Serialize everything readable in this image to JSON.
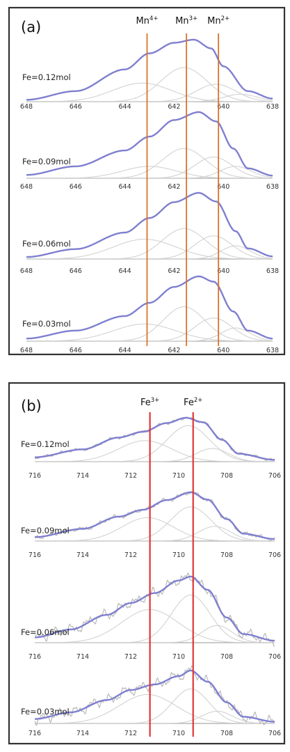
{
  "colors": {
    "envelope": "#7f7fd0",
    "component": "#d2d2d2",
    "raw": "#b4b4b4",
    "marker_a": "#d9742b",
    "marker_b": "#e03535"
  },
  "chart_data": [
    {
      "type": "line",
      "panel_label": "(a)",
      "x_direction": "decreasing",
      "xlim": [
        648,
        638
      ],
      "xticks": [
        "648",
        "646",
        "644",
        "642",
        "640",
        "638"
      ],
      "markers": [
        {
          "base": "Mn",
          "charge": "4+",
          "x": 643.1
        },
        {
          "base": "Mn",
          "charge": "3+",
          "x": 641.5
        },
        {
          "base": "Mn",
          "charge": "2+",
          "x": 640.2
        }
      ],
      "spectra": [
        {
          "label": "Fe=0.12mol",
          "peak_position": 641.1,
          "envelope": [
            [
              648,
              0.03
            ],
            [
              646,
              0.17
            ],
            [
              644,
              0.52
            ],
            [
              643,
              0.78
            ],
            [
              642,
              0.95
            ],
            [
              641.2,
              1.0
            ],
            [
              640.5,
              0.86
            ],
            [
              640,
              0.57
            ],
            [
              639,
              0.17
            ],
            [
              638,
              0.05
            ]
          ],
          "components": [
            {
              "center": 643.3,
              "fwhm": 2.8,
              "height": 0.3
            },
            {
              "center": 641.6,
              "fwhm": 2.2,
              "height": 0.55
            },
            {
              "center": 640.3,
              "fwhm": 1.9,
              "height": 0.28
            },
            {
              "center": 639.3,
              "fwhm": 1.6,
              "height": 0.12
            }
          ]
        },
        {
          "label": "Fe=0.09mol",
          "peak_position": 640.9,
          "envelope": [
            [
              648,
              0.05
            ],
            [
              646,
              0.18
            ],
            [
              644,
              0.42
            ],
            [
              643,
              0.63
            ],
            [
              642,
              0.88
            ],
            [
              641,
              1.0
            ],
            [
              640.3,
              0.86
            ],
            [
              639.6,
              0.45
            ],
            [
              639,
              0.15
            ],
            [
              638,
              0.04
            ]
          ],
          "components": [
            {
              "center": 643.0,
              "fwhm": 2.6,
              "height": 0.18
            },
            {
              "center": 641.6,
              "fwhm": 2.1,
              "height": 0.45
            },
            {
              "center": 640.4,
              "fwhm": 1.8,
              "height": 0.32
            },
            {
              "center": 639.5,
              "fwhm": 1.5,
              "height": 0.18
            }
          ]
        },
        {
          "label": "Fe=0.06mol",
          "peak_position": 640.8,
          "envelope": [
            [
              648,
              0.03
            ],
            [
              646,
              0.15
            ],
            [
              644,
              0.4
            ],
            [
              643,
              0.62
            ],
            [
              642,
              0.86
            ],
            [
              641,
              1.0
            ],
            [
              640.3,
              0.87
            ],
            [
              639.5,
              0.42
            ],
            [
              639,
              0.16
            ],
            [
              638,
              0.04
            ]
          ],
          "components": [
            {
              "center": 643.2,
              "fwhm": 3.0,
              "height": 0.3
            },
            {
              "center": 641.6,
              "fwhm": 2.1,
              "height": 0.46
            },
            {
              "center": 640.4,
              "fwhm": 1.8,
              "height": 0.35
            },
            {
              "center": 639.5,
              "fwhm": 1.4,
              "height": 0.2
            }
          ]
        },
        {
          "label": "Fe=0.03mol",
          "peak_position": 640.8,
          "envelope": [
            [
              648,
              0.04
            ],
            [
              646,
              0.16
            ],
            [
              644,
              0.38
            ],
            [
              643,
              0.58
            ],
            [
              642,
              0.82
            ],
            [
              641,
              0.98
            ],
            [
              640.4,
              0.9
            ],
            [
              639.6,
              0.45
            ],
            [
              639,
              0.16
            ],
            [
              638,
              0.04
            ]
          ],
          "components": [
            {
              "center": 643.2,
              "fwhm": 3.0,
              "height": 0.26
            },
            {
              "center": 641.6,
              "fwhm": 2.0,
              "height": 0.52
            },
            {
              "center": 640.4,
              "fwhm": 1.8,
              "height": 0.35
            },
            {
              "center": 639.5,
              "fwhm": 1.4,
              "height": 0.2
            }
          ]
        }
      ]
    },
    {
      "type": "line",
      "panel_label": "(b)",
      "x_direction": "decreasing",
      "xlim": [
        716,
        706
      ],
      "xticks": [
        "716",
        "714",
        "712",
        "710",
        "708",
        "706"
      ],
      "markers": [
        {
          "base": "Fe",
          "charge": "3+",
          "x": 711.2
        },
        {
          "base": "Fe",
          "charge": "2+",
          "x": 709.4
        }
      ],
      "spectra": [
        {
          "label": "Fe=0.12mol",
          "peak_position": 709.7,
          "envelope": [
            [
              716,
              0.1
            ],
            [
              714,
              0.28
            ],
            [
              712.5,
              0.55
            ],
            [
              711.5,
              0.68
            ],
            [
              710.5,
              0.88
            ],
            [
              709.7,
              1.0
            ],
            [
              709,
              0.9
            ],
            [
              708.2,
              0.5
            ],
            [
              707.5,
              0.18
            ],
            [
              706,
              0.04
            ]
          ],
          "components": [
            {
              "center": 711.4,
              "fwhm": 2.6,
              "height": 0.48
            },
            {
              "center": 709.6,
              "fwhm": 2.1,
              "height": 0.82
            },
            {
              "center": 708.6,
              "fwhm": 1.6,
              "height": 0.3
            }
          ],
          "raw_noise": 0.04
        },
        {
          "label": "Fe=0.09mol",
          "peak_position": 709.5,
          "envelope": [
            [
              716,
              0.08
            ],
            [
              714,
              0.25
            ],
            [
              712.5,
              0.5
            ],
            [
              711.5,
              0.64
            ],
            [
              710.5,
              0.84
            ],
            [
              709.5,
              1.0
            ],
            [
              708.8,
              0.85
            ],
            [
              708,
              0.45
            ],
            [
              707.3,
              0.15
            ],
            [
              706,
              0.04
            ]
          ],
          "components": [
            {
              "center": 711.3,
              "fwhm": 2.5,
              "height": 0.48
            },
            {
              "center": 709.5,
              "fwhm": 2.0,
              "height": 0.7
            },
            {
              "center": 708.5,
              "fwhm": 1.6,
              "height": 0.3
            }
          ],
          "raw_noise": 0.05
        },
        {
          "label": "Fe=0.06mol",
          "peak_position": 709.6,
          "envelope": [
            [
              716,
              0.08
            ],
            [
              714.5,
              0.2
            ],
            [
              713,
              0.42
            ],
            [
              712,
              0.6
            ],
            [
              711,
              0.75
            ],
            [
              710,
              0.94
            ],
            [
              709.5,
              1.0
            ],
            [
              708.8,
              0.8
            ],
            [
              708,
              0.38
            ],
            [
              707.3,
              0.13
            ],
            [
              706,
              0.03
            ]
          ],
          "components": [
            {
              "center": 711.2,
              "fwhm": 2.8,
              "height": 0.5
            },
            {
              "center": 709.5,
              "fwhm": 1.9,
              "height": 0.72
            },
            {
              "center": 708.4,
              "fwhm": 1.5,
              "height": 0.26
            }
          ],
          "raw_noise": 0.09
        },
        {
          "label": "Fe=0.03mol",
          "peak_position": 709.5,
          "envelope": [
            [
              716,
              0.08
            ],
            [
              714.5,
              0.2
            ],
            [
              713,
              0.42
            ],
            [
              712,
              0.6
            ],
            [
              711,
              0.7
            ],
            [
              710,
              0.85
            ],
            [
              709.5,
              0.95
            ],
            [
              708.8,
              0.75
            ],
            [
              708,
              0.38
            ],
            [
              707.3,
              0.12
            ],
            [
              706,
              0.03
            ]
          ],
          "components": [
            {
              "center": 711.3,
              "fwhm": 2.8,
              "height": 0.52
            },
            {
              "center": 709.5,
              "fwhm": 1.8,
              "height": 0.62
            },
            {
              "center": 708.4,
              "fwhm": 1.5,
              "height": 0.22
            }
          ],
          "raw_noise": 0.11
        }
      ]
    }
  ]
}
